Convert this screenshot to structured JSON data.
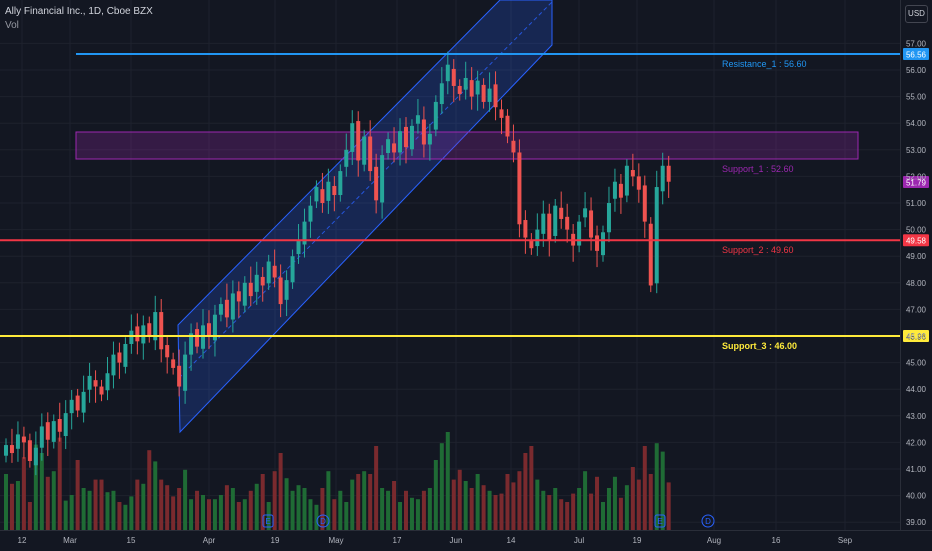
{
  "header": {
    "symbol_line": "Ally Financial Inc., 1D, Cboe BZX",
    "volume_label": "Vol",
    "currency": "USD"
  },
  "colors": {
    "background": "#131722",
    "up": "#26a69a",
    "down": "#ef5350",
    "vol_up": "#1f6b35",
    "vol_down": "#7a2a2e",
    "resistance": "#2196f3",
    "support_1": "#9c27b0",
    "support_2": "#f23645",
    "support_3": "#ffeb3b",
    "channel": "#2962ff"
  },
  "y_axis": {
    "ticks": [
      "57.00",
      "56.00",
      "55.00",
      "54.00",
      "53.00",
      "52.00",
      "51.00",
      "50.00",
      "49.00",
      "48.00",
      "47.00",
      "46.00",
      "45.00",
      "44.00",
      "43.00",
      "42.00",
      "41.00",
      "40.00",
      "39.00"
    ]
  },
  "x_axis": {
    "ticks": [
      "12",
      "Mar",
      "15",
      "Apr",
      "19",
      "May",
      "17",
      "Jun",
      "14",
      "Jul",
      "19",
      "Aug",
      "16",
      "Sep"
    ]
  },
  "levels": [
    {
      "name": "Resistance_1",
      "label": "Resistance_1 : 56.60",
      "price": 56.6,
      "badge": "56.56",
      "color": "#2196f3"
    },
    {
      "name": "Support_1",
      "label": "Support_1 : 52.60",
      "price": 52.6,
      "badge": "51.79",
      "color": "#9c27b0"
    },
    {
      "name": "Support_2",
      "label": "Support_2 : 49.60",
      "price": 49.6,
      "badge": "49.58",
      "color": "#f23645"
    },
    {
      "name": "Support_3",
      "label": "Support_3 : 46.00",
      "price": 46.0,
      "badge": "45.96",
      "color": "#ffeb3b"
    }
  ],
  "events": [
    {
      "letter": "E",
      "kind": "earnings"
    },
    {
      "letter": "D",
      "kind": "dividend"
    },
    {
      "letter": "E",
      "kind": "earnings"
    },
    {
      "letter": "D",
      "kind": "dividend"
    }
  ],
  "chart_data": {
    "type": "candlestick",
    "title": "Ally Financial Inc., 1D, Cboe BZX",
    "ylabel": "USD",
    "ylim": [
      38.8,
      57.6
    ],
    "x": [
      "12",
      "Mar",
      "15",
      "Apr",
      "19",
      "May",
      "17",
      "Jun",
      "14",
      "Jul",
      "19",
      "Aug",
      "16",
      "Sep"
    ],
    "ohlc_closes": [
      41.9,
      41.6,
      42.3,
      42.0,
      41.3,
      41.8,
      42.6,
      42.1,
      42.8,
      42.4,
      43.1,
      43.6,
      43.2,
      43.9,
      44.5,
      44.1,
      43.8,
      44.6,
      45.3,
      45.0,
      45.7,
      46.2,
      45.8,
      46.4,
      46.0,
      46.9,
      45.5,
      45.2,
      44.8,
      44.1,
      45.3,
      46.1,
      45.6,
      46.4,
      46.0,
      46.8,
      47.2,
      46.7,
      47.6,
      47.3,
      48.0,
      47.5,
      48.3,
      47.9,
      48.8,
      48.2,
      47.2,
      48.1,
      49.0,
      49.6,
      50.3,
      50.9,
      51.6,
      51.0,
      51.8,
      51.3,
      52.2,
      53.0,
      54.0,
      52.6,
      53.5,
      52.2,
      51.1,
      52.8,
      53.4,
      52.9,
      53.7,
      53.1,
      53.9,
      54.3,
      53.2,
      53.6,
      54.8,
      55.5,
      56.2,
      55.4,
      55.1,
      55.7,
      55.0,
      55.6,
      54.8,
      55.3,
      54.6,
      54.2,
      53.5,
      52.9,
      50.2,
      49.7,
      49.3,
      50.0,
      50.6,
      49.6,
      50.9,
      50.4,
      50.0,
      49.4,
      50.3,
      50.8,
      49.7,
      49.2,
      49.9,
      51.0,
      51.8,
      51.2,
      52.4,
      52.0,
      51.5,
      50.3,
      47.9,
      51.6,
      52.4,
      51.8
    ],
    "volume_levels": [
      0.4,
      0.33,
      0.35,
      0.52,
      0.2,
      0.61,
      0.55,
      0.38,
      0.42,
      0.66,
      0.21,
      0.25,
      0.5,
      0.3,
      0.28,
      0.36,
      0.36,
      0.27,
      0.28,
      0.2,
      0.18,
      0.24,
      0.36,
      0.33,
      0.57,
      0.49,
      0.36,
      0.32,
      0.24,
      0.3,
      0.43,
      0.22,
      0.28,
      0.25,
      0.22,
      0.22,
      0.25,
      0.32,
      0.3,
      0.2,
      0.22,
      0.28,
      0.33,
      0.4,
      0.2,
      0.42,
      0.55,
      0.37,
      0.28,
      0.32,
      0.3,
      0.22,
      0.18,
      0.3,
      0.42,
      0.22,
      0.28,
      0.2,
      0.36,
      0.4,
      0.42,
      0.4,
      0.6,
      0.3,
      0.28,
      0.35,
      0.2,
      0.28,
      0.23,
      0.22,
      0.28,
      0.3,
      0.5,
      0.62,
      0.7,
      0.36,
      0.43,
      0.35,
      0.3,
      0.4,
      0.32,
      0.28,
      0.25,
      0.26,
      0.4,
      0.34,
      0.42,
      0.55,
      0.6,
      0.36,
      0.28,
      0.25,
      0.3,
      0.22,
      0.2,
      0.26,
      0.3,
      0.42,
      0.26,
      0.38,
      0.2,
      0.3,
      0.38,
      0.23,
      0.32,
      0.45,
      0.36,
      0.6,
      0.4,
      0.62,
      0.56,
      0.34
    ]
  }
}
